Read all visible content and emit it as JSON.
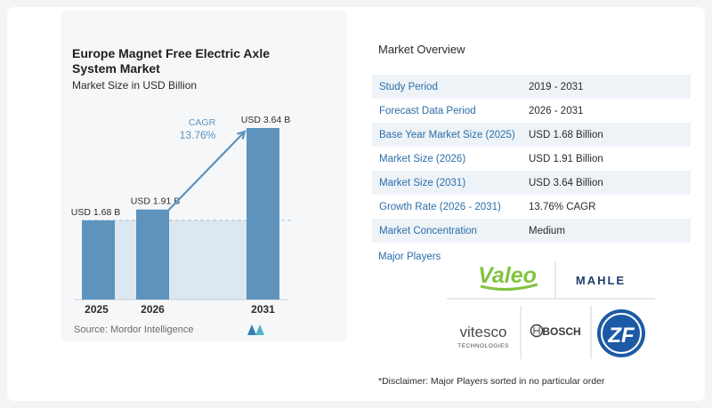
{
  "chart_data": {
    "type": "bar",
    "title": "Europe Magnet Free Electric Axle System Market",
    "subtitle": "Market Size in USD Billion",
    "categories": [
      "2025",
      "2026",
      "2031"
    ],
    "values": [
      1.68,
      1.91,
      3.64
    ],
    "data_labels": [
      "USD 1.68 B",
      "USD 1.91 B",
      "USD 3.64 B"
    ],
    "cagr_label": "CAGR",
    "cagr_value": "13.76%",
    "ylim": [
      0,
      3.64
    ],
    "colors": {
      "bar": "#5d93bd",
      "band": "#dde7f0",
      "arrow": "#5d93bd",
      "baseline": "#a9c0d3"
    }
  },
  "source": "Source:  Mordor Intelligence",
  "overview": {
    "title": "Market Overview",
    "rows": [
      {
        "key": "Study Period",
        "value": "2019 - 2031"
      },
      {
        "key": "Forecast Data Period",
        "value": "2026 - 2031"
      },
      {
        "key": "Base Year Market Size (2025)",
        "value": "USD 1.68 Billion"
      },
      {
        "key": "Market Size (2026)",
        "value": "USD 1.91 Billion"
      },
      {
        "key": "Market Size (2031)",
        "value": "USD 3.64 Billion"
      },
      {
        "key": "Growth Rate (2026 - 2031)",
        "value": "13.76% CAGR"
      },
      {
        "key": "Market Concentration",
        "value": "Medium"
      }
    ]
  },
  "players": {
    "title": "Major Players",
    "logos": [
      "Valeo",
      "MAHLE",
      "vitesco",
      "TECHNOLOGIES",
      "BOSCH",
      "ZF"
    ]
  },
  "disclaimer": "*Disclaimer: Major Players sorted in no particular order",
  "colors": {
    "accent": "#2b6ea8",
    "valeo": "#82c341",
    "zf": "#1d5aa5"
  }
}
